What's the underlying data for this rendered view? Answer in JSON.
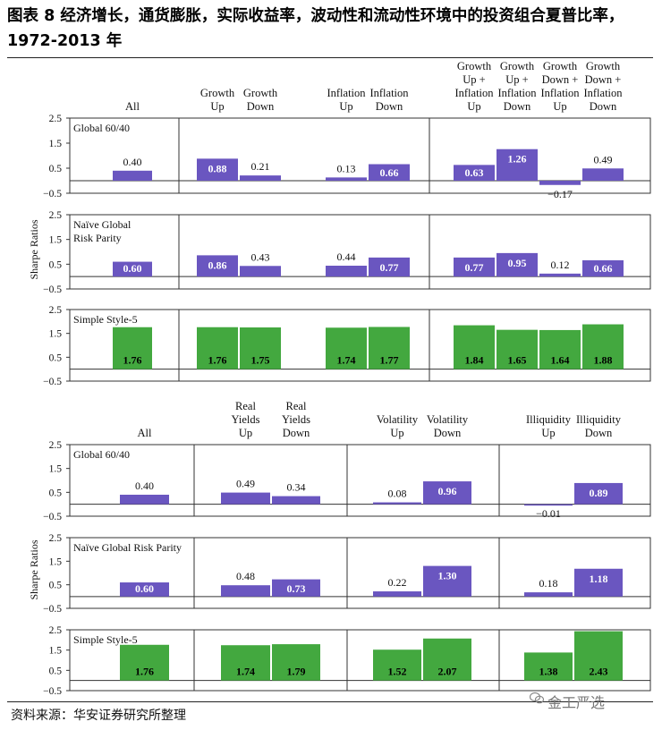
{
  "title": "图表 8 经济增长，通货膨胀，实际收益率，波动性和流动性环境中的投资组合夏普比率，1972-2013 年",
  "source": "资料来源：华安证券研究所整理",
  "watermark": "金工严选",
  "colors": {
    "purple": "#6A56C0",
    "green": "#43A83F",
    "border": "#333333"
  },
  "chart_data": [
    {
      "type": "bar",
      "group_labels": [
        [
          "All"
        ],
        [
          "Growth",
          "Up"
        ],
        [
          "Growth",
          "Down"
        ],
        [
          "Inflation",
          "Up"
        ],
        [
          "Inflation",
          "Down"
        ],
        [
          "Growth",
          "Up +",
          "Inflation",
          "Up"
        ],
        [
          "Growth",
          "Up +",
          "Inflation",
          "Down"
        ],
        [
          "Growth",
          "Down +",
          "Inflation",
          "Up"
        ],
        [
          "Growth",
          "Down +",
          "Inflation",
          "Down"
        ]
      ],
      "ylabel": "Sharpe Ratios",
      "ylim": [
        -0.5,
        2.5
      ],
      "yticks": [
        "2.5",
        "1.5",
        "0.5",
        "−0.5"
      ],
      "series": [
        {
          "name": "Global 60/40",
          "name_lines": [
            "Global 60/40"
          ],
          "color": "purple",
          "values": [
            0.4,
            0.88,
            0.21,
            0.13,
            0.66,
            0.63,
            1.26,
            -0.17,
            0.49
          ],
          "labels": [
            "0.40",
            "0.88",
            "0.21",
            "0.13",
            "0.66",
            "0.63",
            "1.26",
            "−0.17",
            "0.49"
          ]
        },
        {
          "name": "Naïve Global Risk Parity",
          "name_lines": [
            "Naïve Global",
            "Risk Parity"
          ],
          "color": "purple",
          "values": [
            0.6,
            0.86,
            0.43,
            0.44,
            0.77,
            0.77,
            0.95,
            0.12,
            0.66
          ],
          "labels": [
            "0.60",
            "0.86",
            "0.43",
            "0.44",
            "0.77",
            "0.77",
            "0.95",
            "0.12",
            "0.66"
          ]
        },
        {
          "name": "Simple Style-5",
          "name_lines": [
            "Simple Style-5"
          ],
          "color": "green",
          "values": [
            1.76,
            1.76,
            1.75,
            1.74,
            1.77,
            1.84,
            1.65,
            1.64,
            1.88
          ],
          "labels": [
            "1.76",
            "1.76",
            "1.75",
            "1.74",
            "1.77",
            "1.84",
            "1.65",
            "1.64",
            "1.88"
          ]
        }
      ]
    },
    {
      "type": "bar",
      "group_labels": [
        [
          "All"
        ],
        [
          "Real",
          "Yields",
          "Up"
        ],
        [
          "Real",
          "Yields",
          "Down"
        ],
        [
          "Volatility",
          "Up"
        ],
        [
          "Volatility",
          "Down"
        ],
        [
          "Illiquidity",
          "Up"
        ],
        [
          "Illiquidity",
          "Down"
        ]
      ],
      "ylabel": "Sharpe Ratios",
      "ylim": [
        -0.5,
        2.5
      ],
      "yticks": [
        "2.5",
        "1.5",
        "0.5",
        "−0.5"
      ],
      "series": [
        {
          "name": "Global 60/40",
          "name_lines": [
            "Global 60/40"
          ],
          "color": "purple",
          "values": [
            0.4,
            0.49,
            0.34,
            0.08,
            0.96,
            -0.01,
            0.89
          ],
          "labels": [
            "0.40",
            "0.49",
            "0.34",
            "0.08",
            "0.96",
            "−0.01",
            "0.89"
          ]
        },
        {
          "name": "Naïve Global Risk Parity",
          "name_lines": [
            "Naïve Global Risk Parity"
          ],
          "color": "purple",
          "values": [
            0.6,
            0.48,
            0.73,
            0.22,
            1.3,
            0.18,
            1.18
          ],
          "labels": [
            "0.60",
            "0.48",
            "0.73",
            "0.22",
            "1.30",
            "0.18",
            "1.18"
          ]
        },
        {
          "name": "Simple Style-5",
          "name_lines": [
            "Simple Style-5"
          ],
          "color": "green",
          "values": [
            1.76,
            1.74,
            1.79,
            1.52,
            2.07,
            1.38,
            2.43
          ],
          "labels": [
            "1.76",
            "1.74",
            "1.79",
            "1.52",
            "2.07",
            "1.38",
            "2.43"
          ]
        }
      ]
    }
  ]
}
